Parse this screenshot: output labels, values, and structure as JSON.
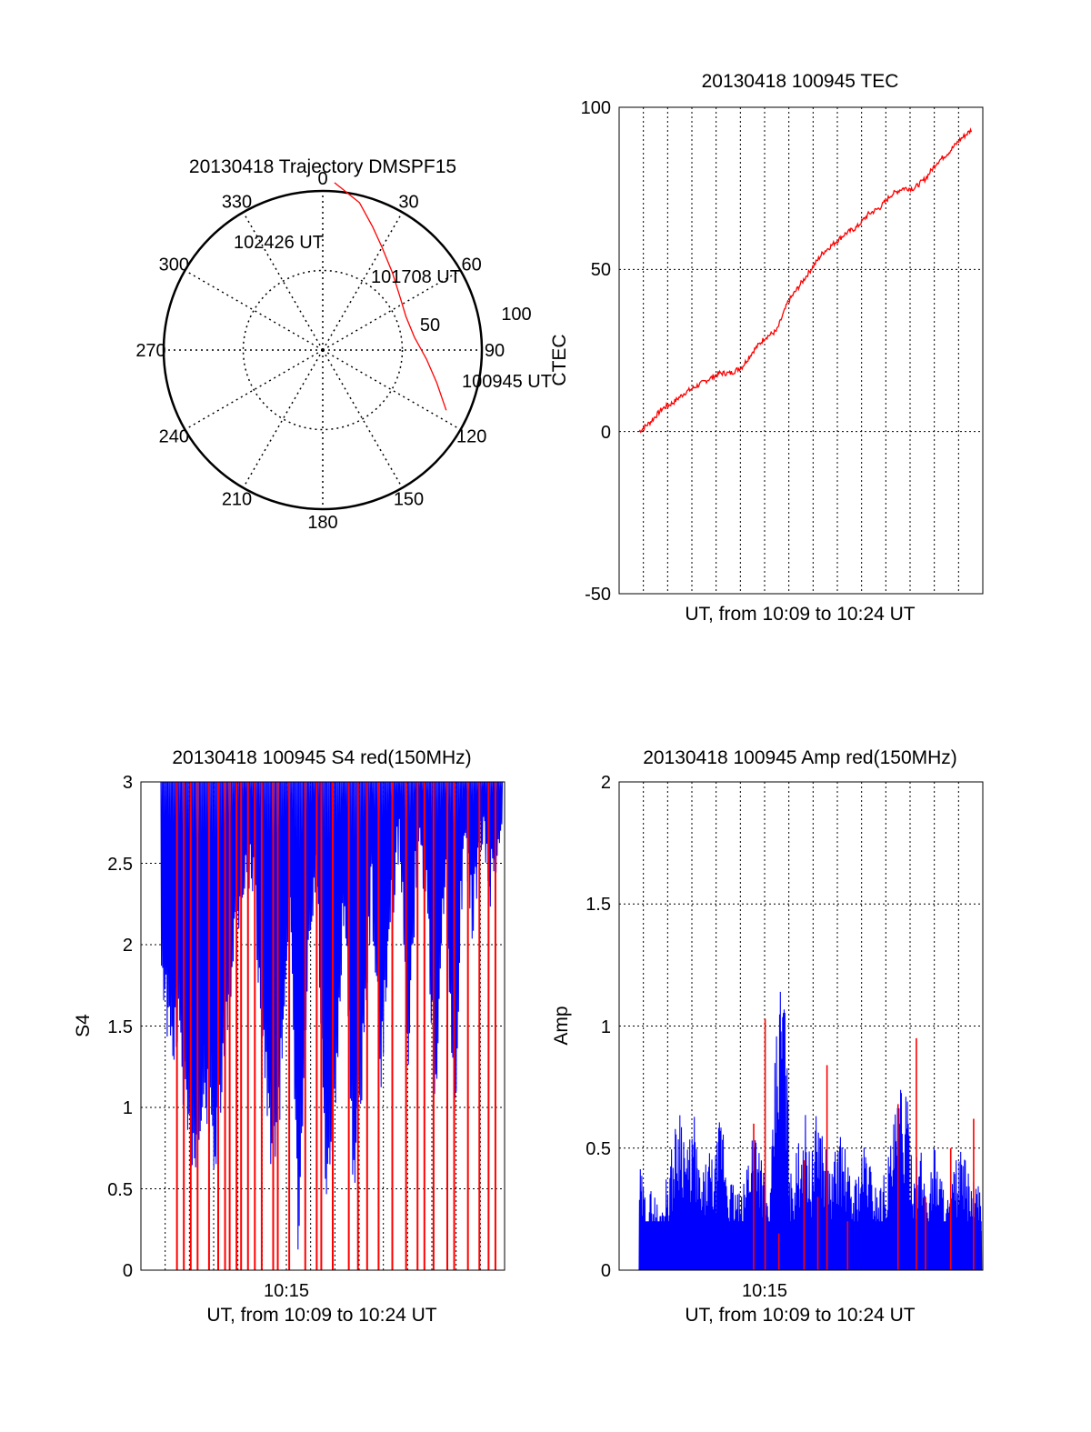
{
  "colors": {
    "red": "#ff0000",
    "blue": "#0000ff",
    "axis": "#000000",
    "grid": "#000000"
  },
  "chart_data": [
    {
      "id": "trajectory",
      "type": "scatter",
      "subtype": "polar-sky-plot",
      "title": "20130418 Trajectory DMSPF15",
      "azimuth_labels": [
        "0",
        "30",
        "60",
        "90",
        "120",
        "150",
        "180",
        "210",
        "240",
        "270",
        "300",
        "330"
      ],
      "elevation_labels": [
        "50",
        "100"
      ],
      "grid": true,
      "track_color": "red",
      "track": [
        {
          "azimuth": 116,
          "zenith": 95
        },
        {
          "azimuth": 106,
          "zenith": 82
        },
        {
          "azimuth": 95,
          "zenith": 72
        },
        {
          "azimuth": 82,
          "zenith": 64
        },
        {
          "azimuth": 68,
          "zenith": 62
        },
        {
          "azimuth": 55,
          "zenith": 65
        },
        {
          "azimuth": 42,
          "zenith": 72
        },
        {
          "azimuth": 30,
          "zenith": 82
        },
        {
          "azimuth": 22,
          "zenith": 92
        },
        {
          "azimuth": 14,
          "zenith": 105
        },
        {
          "azimuth": 4,
          "zenith": 116
        }
      ],
      "annotations": [
        "100945 UT",
        "101708 UT",
        "102426 UT"
      ]
    },
    {
      "id": "tec",
      "type": "line",
      "title": "20130418 100945 TEC",
      "xlabel": "UT, from 10:09 to 10:24 UT",
      "ylabel": "CTEC",
      "xlim": [
        0,
        15
      ],
      "ylim": [
        -50,
        100
      ],
      "yticks": [
        "100",
        "50",
        "0",
        "-50"
      ],
      "grid": true,
      "series": [
        {
          "color": "red",
          "x": [
            0,
            0.5,
            1,
            1.5,
            2,
            2.5,
            3,
            3.5,
            4,
            4.5,
            5,
            5.5,
            6,
            6.5,
            7,
            7.5,
            8,
            8.5,
            9,
            9.5,
            10,
            10.5,
            11,
            11.5,
            12,
            12.5,
            13,
            13.5,
            14,
            14.5
          ],
          "y": [
            0,
            3,
            7,
            9,
            12,
            14,
            16,
            18,
            18,
            20,
            25,
            29,
            31,
            40,
            45,
            50,
            55,
            58,
            61,
            63,
            67,
            69,
            73,
            75,
            75,
            78,
            83,
            86,
            90,
            93
          ]
        }
      ]
    },
    {
      "id": "s4",
      "type": "line",
      "title": "20130418 100945 S4 red(150MHz)",
      "xlabel": "UT, from 10:09 to 10:24 UT",
      "ylabel": "S4",
      "xlim": [
        0,
        15
      ],
      "ylim": [
        0,
        3
      ],
      "xticks": [
        {
          "x": 6,
          "label": "10:15"
        }
      ],
      "yticks": [
        "0",
        "0.5",
        "1",
        "1.5",
        "2",
        "2.5",
        "3"
      ],
      "grid": true,
      "blue_envelope": {
        "x": [
          0,
          0.4,
          0.8,
          1.2,
          1.6,
          2,
          2.4,
          2.8,
          3.2,
          3.6,
          4,
          4.4,
          4.8,
          5.2,
          5.6,
          6,
          6.4,
          6.8,
          7.2,
          7.6,
          8,
          8.4,
          8.8,
          9.2,
          9.6,
          10,
          10.4,
          10.8,
          11.2,
          11.6,
          12,
          12.4,
          12.8,
          13.2,
          13.6,
          14,
          14.4,
          14.8
        ],
        "y": [
          2.2,
          1.6,
          1.7,
          1.0,
          1.0,
          1.3,
          0.9,
          1.6,
          2.3,
          2.6,
          2.7,
          1.8,
          0.9,
          1.3,
          2.6,
          0.35,
          2.0,
          2.7,
          0.6,
          1.2,
          2.6,
          0.8,
          1.5,
          2.6,
          1.4,
          2.4,
          2.9,
          1.6,
          2.9,
          2.6,
          1.2,
          2.7,
          1.1,
          2.9,
          2.4,
          2.9,
          2.6,
          2.9
        ]
      },
      "red_spikes_x": [
        0.7,
        1.0,
        1.3,
        1.6,
        2.1,
        2.5,
        2.8,
        3.0,
        3.3,
        3.5,
        3.8,
        4.1,
        4.4,
        4.9,
        5.1,
        5.6,
        6.3,
        6.8,
        7.0,
        7.5,
        8.2,
        8.6,
        9.0,
        9.5,
        10.1,
        10.7,
        11.2,
        11.5,
        11.9,
        12.5,
        12.8,
        13.4,
        13.9,
        14.3,
        14.6
      ]
    },
    {
      "id": "amp",
      "type": "line",
      "title": "20130418 100945 Amp red(150MHz)",
      "xlabel": "UT, from 10:09 to 10:24 UT",
      "ylabel": "Amp",
      "xlim": [
        0,
        15
      ],
      "ylim": [
        0,
        2
      ],
      "xticks": [
        {
          "x": 6,
          "label": "10:15"
        }
      ],
      "yticks": [
        "0",
        "0.5",
        "1",
        "1.5",
        "2"
      ],
      "grid": true,
      "blue_envelope": {
        "x": [
          0,
          0.3,
          0.6,
          0.9,
          1.2,
          1.5,
          1.8,
          2.1,
          2.4,
          2.7,
          3.0,
          3.3,
          3.6,
          3.9,
          4.2,
          4.5,
          4.8,
          5.1,
          5.4,
          5.7,
          6.0,
          6.3,
          6.6,
          6.9,
          7.2,
          7.5,
          7.8,
          8.1,
          8.4,
          8.7,
          9.0,
          9.3,
          9.6,
          9.9,
          10.2,
          10.5,
          10.8,
          11.1,
          11.4,
          11.7,
          12.0,
          12.3,
          12.6,
          12.9,
          13.2,
          13.5,
          13.8,
          14.1,
          14.4,
          14.7
        ],
        "y": [
          0.45,
          0.3,
          0.35,
          0.25,
          0.4,
          0.55,
          0.75,
          0.5,
          0.65,
          0.35,
          0.5,
          0.45,
          0.7,
          0.4,
          0.35,
          0.3,
          0.55,
          0.7,
          0.45,
          0.25,
          1.05,
          1.37,
          0.4,
          0.5,
          0.7,
          0.45,
          0.7,
          0.55,
          0.4,
          0.6,
          0.5,
          0.35,
          0.45,
          0.55,
          0.4,
          0.35,
          0.45,
          0.6,
          0.8,
          0.7,
          0.45,
          0.5,
          0.35,
          0.55,
          0.4,
          0.3,
          0.45,
          0.5,
          0.4,
          0.35
        ]
      },
      "blue_baseline": 0.2,
      "red_spikes": [
        {
          "x": 5.0,
          "y": 0.6
        },
        {
          "x": 5.5,
          "y": 1.03
        },
        {
          "x": 6.1,
          "y": 0.15
        },
        {
          "x": 7.2,
          "y": 0.45
        },
        {
          "x": 7.8,
          "y": 0.3
        },
        {
          "x": 8.2,
          "y": 0.84
        },
        {
          "x": 9.1,
          "y": 0.2
        },
        {
          "x": 11.3,
          "y": 0.68
        },
        {
          "x": 12.1,
          "y": 0.95
        },
        {
          "x": 12.5,
          "y": 0.3
        },
        {
          "x": 13.6,
          "y": 0.5
        },
        {
          "x": 14.6,
          "y": 0.62
        }
      ]
    }
  ]
}
